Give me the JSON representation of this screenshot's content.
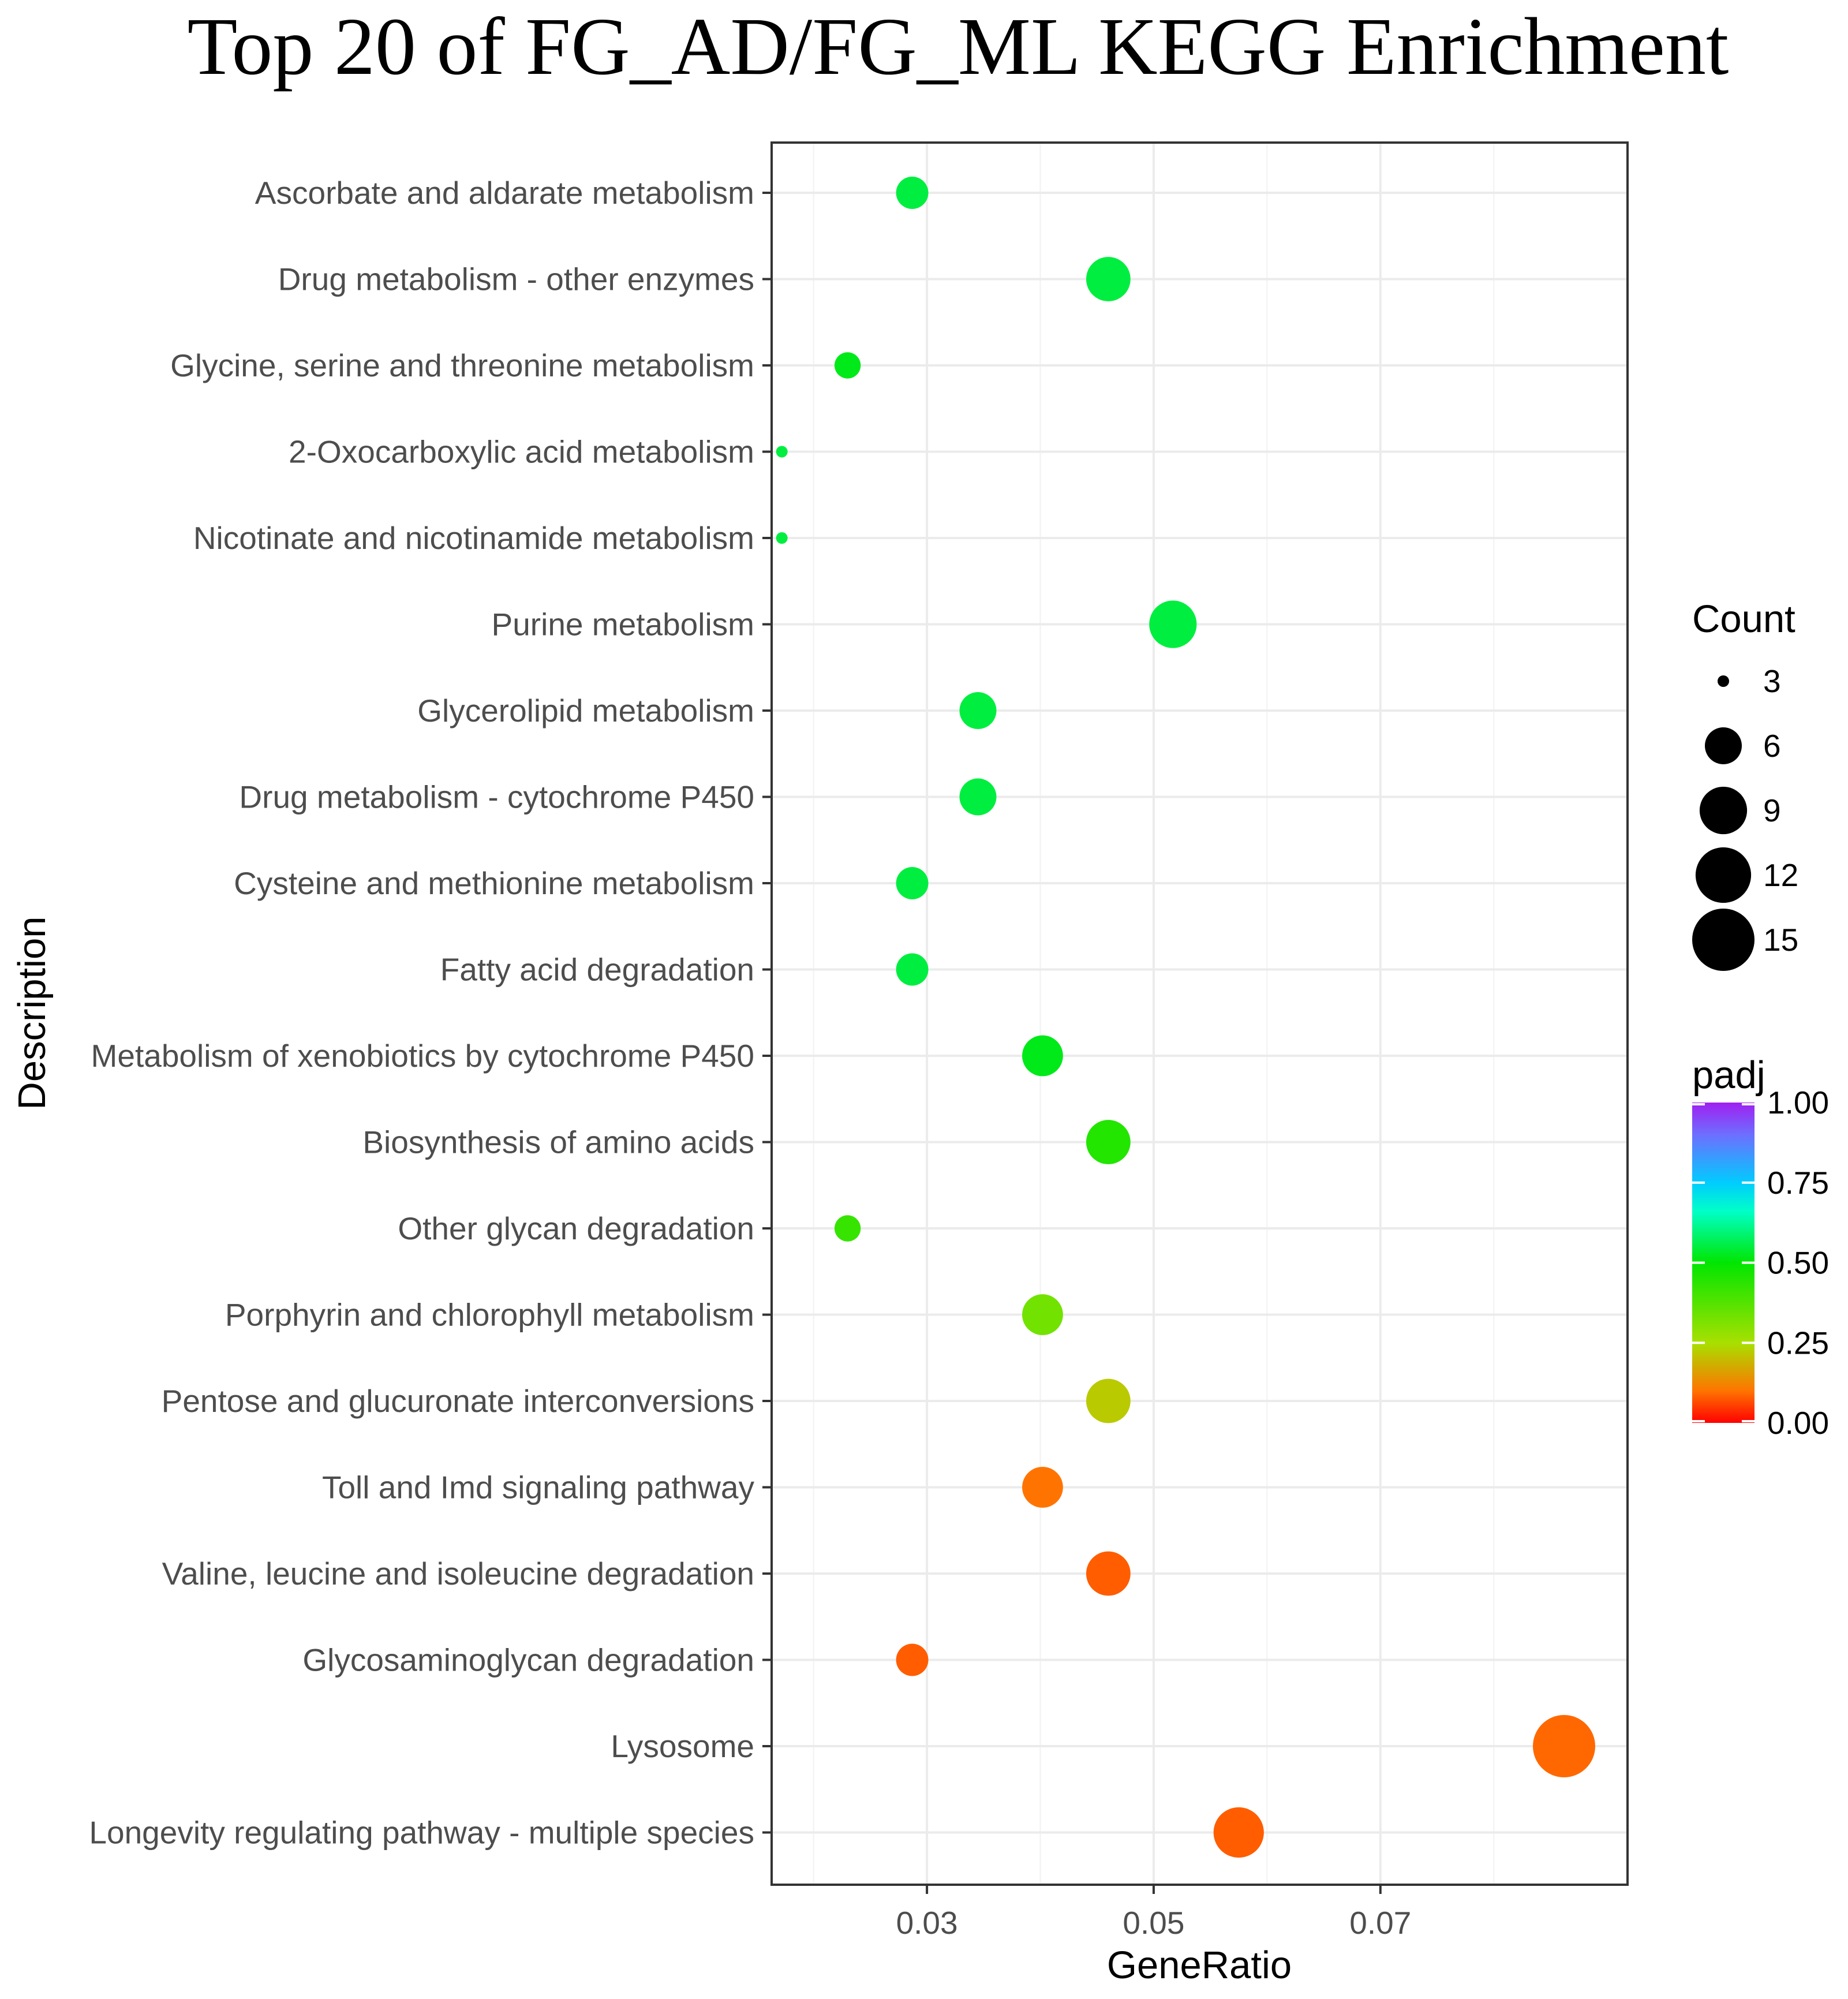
{
  "chart_data": {
    "type": "scatter",
    "title": "Top 20 of  FG_AD/FG_ML KEGG Enrichment",
    "xlabel": "GeneRatio",
    "ylabel": "Description",
    "xlim": [
      0.0163,
      0.0918
    ],
    "xticks": [
      0.03,
      0.05,
      0.07
    ],
    "xtick_labels": [
      "0.03",
      "0.05",
      "0.07"
    ],
    "grid": true,
    "categories": [
      "Ascorbate and aldarate metabolism",
      "Drug metabolism - other enzymes",
      "Glycine, serine and threonine metabolism",
      "2-Oxocarboxylic acid metabolism",
      "Nicotinate and nicotinamide metabolism",
      "Purine metabolism",
      "Glycerolipid metabolism",
      "Drug metabolism - cytochrome P450",
      "Cysteine and methionine metabolism",
      "Fatty acid degradation",
      "Metabolism of xenobiotics by cytochrome P450",
      "Biosynthesis of amino acids",
      "Other glycan degradation",
      "Porphyrin and chlorophyll metabolism",
      "Pentose and glucuronate interconversions",
      "Toll and Imd signaling pathway",
      "Valine, leucine and isoleucine degradation",
      "Glycosaminoglycan degradation",
      "Lysosome",
      "Longevity regulating pathway - multiple species"
    ],
    "gene_ratio": [
      0.0287,
      0.046,
      0.023,
      0.0172,
      0.0172,
      0.0517,
      0.0345,
      0.0345,
      0.0287,
      0.0287,
      0.0402,
      0.046,
      0.023,
      0.0402,
      0.046,
      0.0402,
      0.046,
      0.0287,
      0.0862,
      0.0575
    ],
    "count": [
      5,
      8,
      4,
      3,
      3,
      9,
      6,
      6,
      5,
      5,
      7,
      8,
      4,
      7,
      8,
      7,
      8,
      5,
      15,
      10
    ],
    "padj": [
      0.55,
      0.55,
      0.52,
      0.55,
      0.55,
      0.55,
      0.55,
      0.55,
      0.55,
      0.55,
      0.52,
      0.45,
      0.42,
      0.33,
      0.22,
      0.1,
      0.08,
      0.08,
      0.09,
      0.08
    ],
    "legend_size": {
      "title": "Count",
      "values": [
        3,
        6,
        9,
        12,
        15
      ],
      "labels": [
        "3",
        "6",
        "9",
        "12",
        "15"
      ],
      "position": "right"
    },
    "legend_color": {
      "title": "padj",
      "ticks": [
        0.0,
        0.25,
        0.5,
        0.75,
        1.0
      ],
      "tick_labels": [
        "0.00",
        "0.25",
        "0.50",
        "0.75",
        "1.00"
      ],
      "low_color": "#ff0000",
      "high_color": "#a020f0",
      "position": "right"
    }
  }
}
